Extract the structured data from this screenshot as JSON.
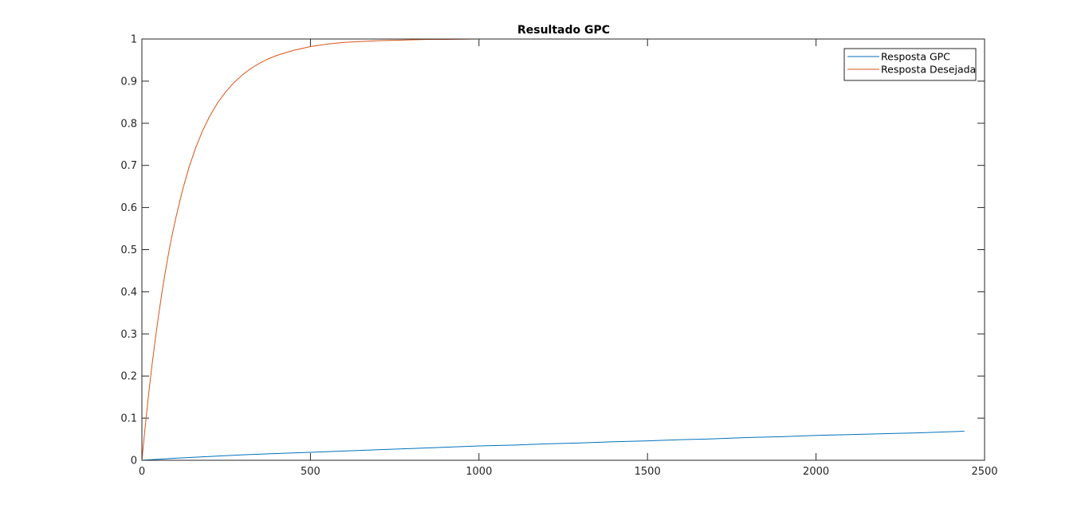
{
  "chart_data": {
    "type": "line",
    "title": "Resultado GPC",
    "xlabel": "",
    "ylabel": "",
    "xlim": [
      0,
      2500
    ],
    "ylim": [
      0,
      1
    ],
    "x_ticks": [
      0,
      500,
      1000,
      1500,
      2000,
      2500
    ],
    "y_ticks": [
      0,
      0.1,
      0.2,
      0.3,
      0.4,
      0.5,
      0.6,
      0.7,
      0.8,
      0.9,
      1
    ],
    "x_tick_labels": [
      "0",
      "500",
      "1000",
      "1500",
      "2000",
      "2500"
    ],
    "y_tick_labels": [
      "0",
      "0.1",
      "0.2",
      "0.3",
      "0.4",
      "0.5",
      "0.6",
      "0.7",
      "0.8",
      "0.9",
      "1"
    ],
    "grid": false,
    "legend_position": "top-right",
    "series": [
      {
        "name": "Resposta GPC",
        "color": "#0072BD",
        "x": [
          0,
          100,
          200,
          300,
          400,
          500,
          600,
          700,
          800,
          900,
          1000,
          1100,
          1200,
          1300,
          1400,
          1500,
          1600,
          1700,
          1800,
          1900,
          2000,
          2100,
          2200,
          2300,
          2440
        ],
        "y": [
          0,
          0.005,
          0.009,
          0.013,
          0.016,
          0.019,
          0.022,
          0.025,
          0.028,
          0.031,
          0.034,
          0.036,
          0.039,
          0.041,
          0.044,
          0.046,
          0.049,
          0.051,
          0.054,
          0.056,
          0.059,
          0.061,
          0.063,
          0.065,
          0.069
        ]
      },
      {
        "name": "Resposta Desejada",
        "color": "#D95319",
        "x": [
          0,
          10,
          20,
          30,
          40,
          50,
          60,
          70,
          80,
          90,
          100,
          120,
          140,
          160,
          180,
          200,
          225,
          250,
          275,
          300,
          325,
          350,
          375,
          400,
          450,
          500,
          550,
          600,
          650,
          700,
          750,
          800,
          850,
          900,
          1000,
          1100,
          1200,
          1300,
          1400,
          1500
        ],
        "y": [
          0,
          0.082,
          0.157,
          0.226,
          0.289,
          0.347,
          0.401,
          0.45,
          0.495,
          0.536,
          0.573,
          0.64,
          0.696,
          0.743,
          0.782,
          0.815,
          0.849,
          0.876,
          0.898,
          0.916,
          0.931,
          0.943,
          0.953,
          0.961,
          0.973,
          0.982,
          0.988,
          0.992,
          0.994,
          0.996,
          0.997,
          0.998,
          0.999,
          0.999,
          1.0,
          1.0,
          1.0,
          1.0,
          1.0,
          1.0
        ]
      }
    ]
  }
}
